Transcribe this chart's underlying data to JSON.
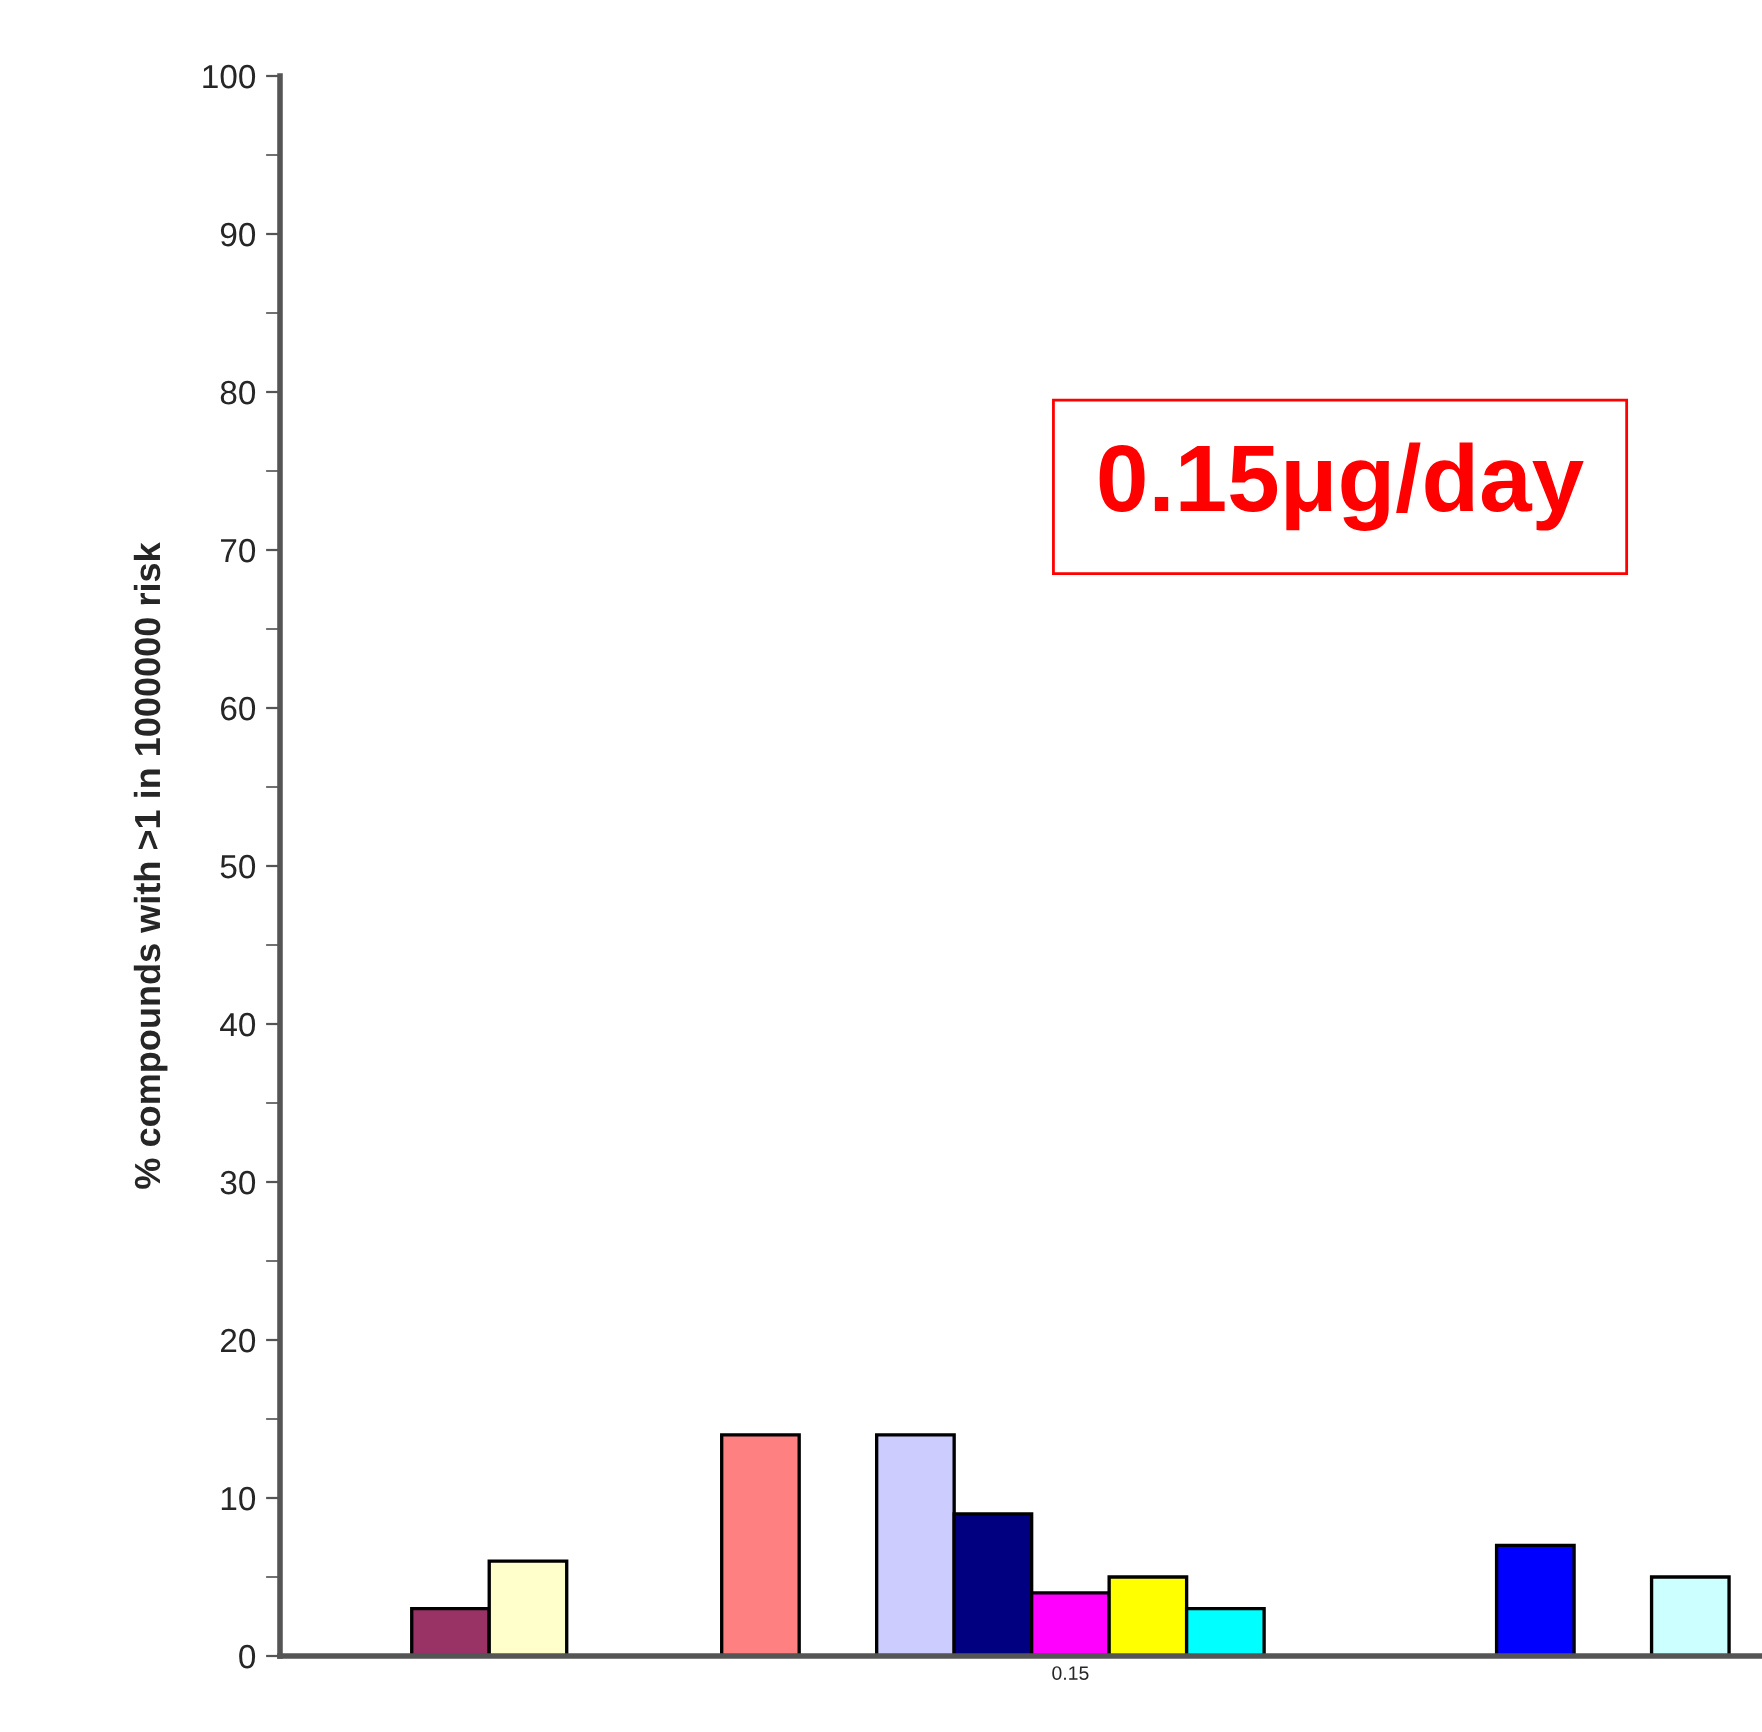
{
  "chart_data": {
    "type": "bar",
    "categories": [
      "0.15"
    ],
    "ylabel": "% compounds with >1 in 1000000 risk",
    "series": [
      {
        "color": "#993366",
        "values": [
          3
        ]
      },
      {
        "color": "#ffffcc",
        "values": [
          6
        ]
      },
      {
        "color": "#ffffff",
        "values": [
          null
        ]
      },
      {
        "color": "#ffffff",
        "values": [
          null
        ]
      },
      {
        "color": "#ff8080",
        "values": [
          14
        ]
      },
      {
        "color": "#ffffff",
        "values": [
          null
        ]
      },
      {
        "color": "#ccccff",
        "values": [
          14
        ]
      },
      {
        "color": "#000080",
        "values": [
          9
        ]
      },
      {
        "color": "#ff00ff",
        "values": [
          4
        ]
      },
      {
        "color": "#ffff00",
        "values": [
          5
        ]
      },
      {
        "color": "#00ffff",
        "values": [
          3
        ]
      },
      {
        "color": "#ffffff",
        "values": [
          null
        ]
      },
      {
        "color": "#ffffff",
        "values": [
          null
        ]
      },
      {
        "color": "#ffffff",
        "values": [
          null
        ]
      },
      {
        "color": "#0000ff",
        "values": [
          7
        ]
      },
      {
        "color": "#ffffff",
        "values": [
          null
        ]
      },
      {
        "color": "#ccffff",
        "values": [
          5
        ]
      }
    ],
    "ylim": [
      0,
      100
    ],
    "yticks": [
      0,
      10,
      20,
      30,
      40,
      50,
      60,
      70,
      80,
      90,
      100
    ],
    "annotations": [
      "0.15μg/day"
    ],
    "grid": false,
    "legend": false
  }
}
